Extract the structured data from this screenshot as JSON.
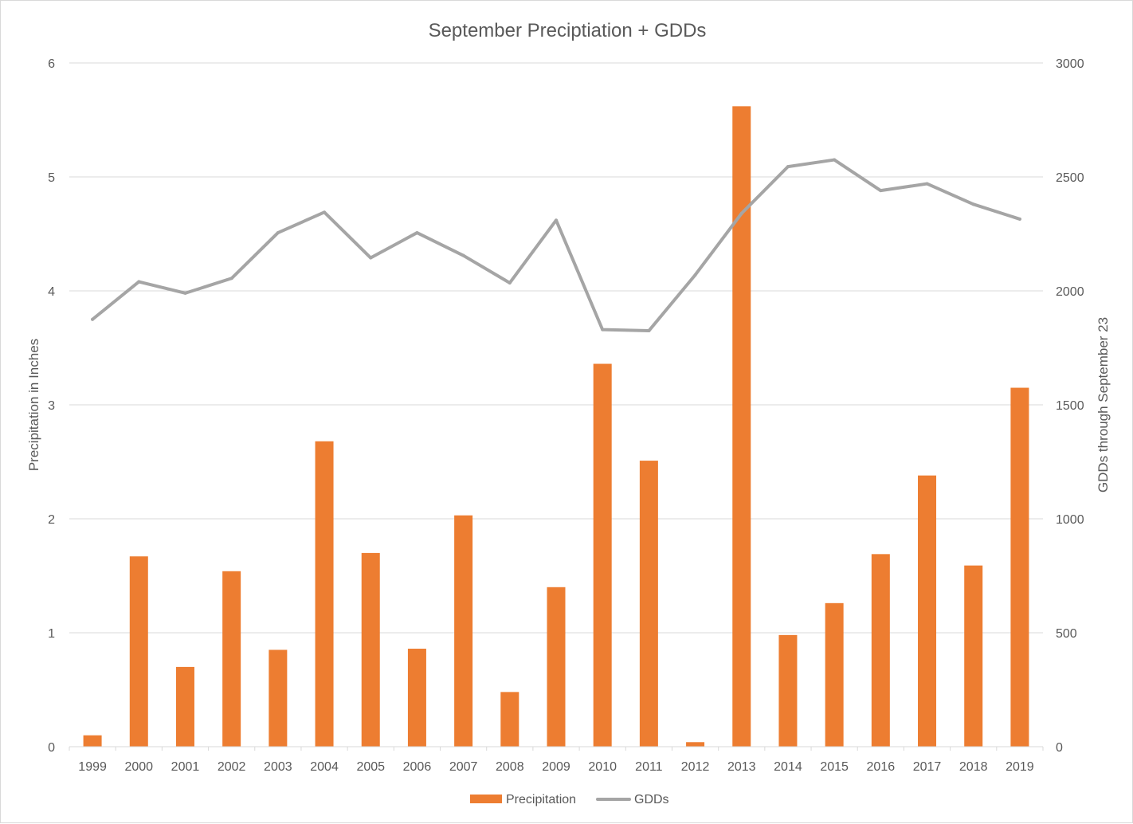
{
  "chart_data": {
    "type": "bar",
    "title": "September Preciptiation + GDDs",
    "categories": [
      "1999",
      "2000",
      "2001",
      "2002",
      "2003",
      "2004",
      "2005",
      "2006",
      "2007",
      "2008",
      "2009",
      "2010",
      "2011",
      "2012",
      "2013",
      "2014",
      "2015",
      "2016",
      "2017",
      "2018",
      "2019"
    ],
    "series": [
      {
        "name": "Precipitation",
        "type": "bar",
        "axis": "left",
        "color": "#ED7D31",
        "values": [
          0.1,
          1.67,
          0.7,
          1.54,
          0.85,
          2.68,
          1.7,
          0.86,
          2.03,
          0.48,
          1.4,
          3.36,
          2.51,
          0.04,
          5.62,
          0.98,
          1.26,
          1.69,
          2.38,
          1.59,
          3.15
        ]
      },
      {
        "name": "GDDs",
        "type": "line",
        "axis": "right",
        "color": "#A5A5A5",
        "values": [
          1875,
          2040,
          1990,
          2055,
          2255,
          2345,
          2145,
          2255,
          2155,
          2035,
          2310,
          1830,
          1825,
          2070,
          2340,
          2545,
          2575,
          2440,
          2470,
          2380,
          2315
        ]
      }
    ],
    "ylabel": "Precipitation in Inches",
    "ylabel_right": "GDDs through September 23",
    "ylim": [
      0,
      6
    ],
    "ylim_right": [
      0,
      3000
    ],
    "yticks": [
      "0",
      "1",
      "2",
      "3",
      "4",
      "5",
      "6"
    ],
    "yticks_right": [
      "0",
      "500",
      "1000",
      "1500",
      "2000",
      "2500",
      "3000"
    ],
    "grid": true,
    "legend": "bottom"
  }
}
